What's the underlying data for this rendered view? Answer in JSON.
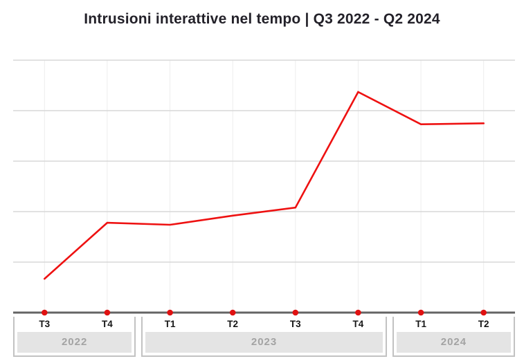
{
  "title": "Intrusioni interattive nel tempo | Q3 2022 - Q2 2024",
  "colors": {
    "background": "#ffffff",
    "title_text": "#232129",
    "line": "#ee1111",
    "dot": "#e01111",
    "axis": "#646464",
    "grid_horizontal": "#d7d7d7",
    "grid_vertical": "#ededed",
    "quarter_label": "#161616",
    "year_label": "#a3a3a3",
    "year_band_bg": "#e4e4e4",
    "group_border": "#c2c2c2"
  },
  "chart_data": {
    "type": "line",
    "title": "Intrusioni interattive nel tempo | Q3 2022 - Q2 2024",
    "categories": [
      "T3",
      "T4",
      "T1",
      "T2",
      "T3",
      "T4",
      "T1",
      "T2"
    ],
    "x_full": [
      "T3 2022",
      "T4 2022",
      "T1 2023",
      "T2 2023",
      "T3 2023",
      "T4 2023",
      "T1 2024",
      "T2 2024"
    ],
    "series": [
      {
        "name": "Intrusioni interattive",
        "values": [
          0.67,
          1.78,
          1.74,
          1.92,
          2.08,
          4.37,
          3.73,
          3.75
        ]
      }
    ],
    "values_note": "y-axis has no tick labels; values estimated in gridline units (1 unit = 1 horizontal gridline spacing above baseline)",
    "xlabel": "",
    "ylabel": "",
    "ylim": [
      0,
      5
    ],
    "grid": "on",
    "legend_position": "none",
    "year_groups": [
      {
        "label": "2022",
        "quarters": [
          "T3",
          "T4"
        ]
      },
      {
        "label": "2023",
        "quarters": [
          "T1",
          "T2",
          "T3",
          "T4"
        ]
      },
      {
        "label": "2024",
        "quarters": [
          "T1",
          "T2"
        ]
      }
    ]
  }
}
